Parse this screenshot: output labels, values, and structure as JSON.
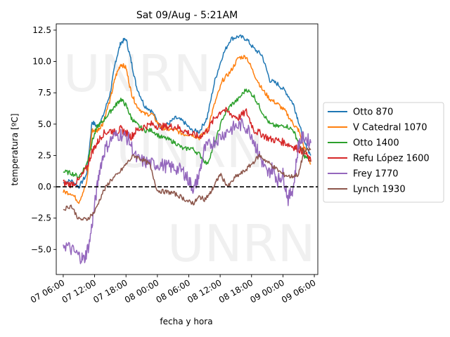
{
  "chart_data": {
    "type": "line",
    "title": "Sat 09/Aug - 5:21AM",
    "xlabel": "fecha y hora",
    "ylabel": "temperatura [ºC]",
    "xlim": [
      "07 04:40",
      "09 06:40"
    ],
    "ylim": [
      -7.0,
      13.0
    ],
    "xticks": [
      "07 06:00",
      "07 12:00",
      "07 18:00",
      "08 00:00",
      "08 06:00",
      "08 12:00",
      "08 18:00",
      "09 00:00",
      "09 06:00"
    ],
    "yticks": [
      -5.0,
      -2.5,
      0.0,
      2.5,
      5.0,
      7.5,
      10.0,
      12.5
    ],
    "ytick_labels": [
      "−5.0",
      "−2.5",
      "0.0",
      "2.5",
      "5.0",
      "7.5",
      "10.0",
      "12.5"
    ],
    "reference_line": {
      "y": 0,
      "style": "dashed",
      "color": "#000000"
    },
    "grid": false,
    "legend_position": "right, outside plot",
    "watermark": [
      "UNRN",
      "UNRN",
      "UNRN"
    ],
    "series": [
      {
        "name": "Otto 870",
        "color": "#1f77b4",
        "x": [
          "07 06:00",
          "07 07:30",
          "07 09:00",
          "07 10:30",
          "07 11:30",
          "07 12:30",
          "07 13:30",
          "07 15:00",
          "07 16:00",
          "07 17:00",
          "07 18:00",
          "07 19:00",
          "07 20:00",
          "07 21:30",
          "07 23:00",
          "08 00:30",
          "08 02:00",
          "08 03:30",
          "08 05:00",
          "08 06:30",
          "08 08:00",
          "08 09:30",
          "08 11:00",
          "08 12:30",
          "08 14:00",
          "08 15:30",
          "08 17:00",
          "08 18:30",
          "08 20:00",
          "08 21:30",
          "08 23:00",
          "09 00:30",
          "09 02:00",
          "09 03:00",
          "09 04:00",
          "09 05:21"
        ],
        "values": [
          0.3,
          0.5,
          0.0,
          1.0,
          5.2,
          4.8,
          5.5,
          7.5,
          10.0,
          11.5,
          11.8,
          10.0,
          8.0,
          6.5,
          6.0,
          4.8,
          5.0,
          5.5,
          5.2,
          4.5,
          4.4,
          5.5,
          8.5,
          10.5,
          11.8,
          12.0,
          11.8,
          11.0,
          10.5,
          8.5,
          8.2,
          7.6,
          6.6,
          5.2,
          3.6,
          2.5
        ]
      },
      {
        "name": "V Catedral 1070",
        "color": "#ff7f0e",
        "x": [
          "07 06:00",
          "07 07:30",
          "07 09:00",
          "07 10:30",
          "07 11:30",
          "07 12:30",
          "07 13:30",
          "07 15:00",
          "07 16:00",
          "07 17:00",
          "07 18:00",
          "07 19:00",
          "07 20:00",
          "07 21:30",
          "07 23:00",
          "08 00:30",
          "08 02:00",
          "08 03:30",
          "08 05:00",
          "08 06:30",
          "08 08:00",
          "08 09:30",
          "08 11:00",
          "08 12:30",
          "08 14:00",
          "08 15:30",
          "08 17:00",
          "08 18:30",
          "08 20:00",
          "08 21:30",
          "08 23:00",
          "09 00:30",
          "09 02:00",
          "09 03:00",
          "09 04:00",
          "09 05:21"
        ],
        "values": [
          -0.4,
          -0.5,
          -1.2,
          0.3,
          4.5,
          4.5,
          5.0,
          7.0,
          8.8,
          9.8,
          9.5,
          7.5,
          6.5,
          5.8,
          5.8,
          4.8,
          4.6,
          4.5,
          4.2,
          4.2,
          3.9,
          4.5,
          6.7,
          8.5,
          9.2,
          10.3,
          10.4,
          9.0,
          7.8,
          7.0,
          6.6,
          6.0,
          5.0,
          4.5,
          3.2,
          1.8
        ]
      },
      {
        "name": "Otto 1400",
        "color": "#2ca02c",
        "x": [
          "07 06:00",
          "07 07:30",
          "07 09:00",
          "07 10:30",
          "07 11:30",
          "07 12:30",
          "07 13:30",
          "07 15:00",
          "07 16:00",
          "07 17:00",
          "07 18:00",
          "07 19:00",
          "07 20:00",
          "07 21:30",
          "07 23:00",
          "08 00:30",
          "08 02:00",
          "08 03:30",
          "08 05:00",
          "08 06:30",
          "08 08:00",
          "08 09:30",
          "08 11:00",
          "08 12:30",
          "08 14:00",
          "08 15:30",
          "08 17:00",
          "08 18:30",
          "08 20:00",
          "08 21:30",
          "08 23:00",
          "09 00:30",
          "09 02:00",
          "09 03:00",
          "09 04:00",
          "09 05:21"
        ],
        "values": [
          1.2,
          1.1,
          0.8,
          1.8,
          3.6,
          4.8,
          5.2,
          6.0,
          6.5,
          7.0,
          6.5,
          5.5,
          5.0,
          4.5,
          4.5,
          4.0,
          3.8,
          3.5,
          3.0,
          3.1,
          2.6,
          1.8,
          3.5,
          5.5,
          6.5,
          7.0,
          7.8,
          7.2,
          6.0,
          5.0,
          4.8,
          4.9,
          4.5,
          3.5,
          2.5,
          2.0
        ]
      },
      {
        "name": "Refu López 1600",
        "color": "#d62728",
        "x": [
          "07 06:00",
          "07 07:30",
          "07 09:00",
          "07 10:30",
          "07 11:30",
          "07 12:30",
          "07 13:30",
          "07 15:00",
          "07 16:00",
          "07 17:00",
          "07 18:00",
          "07 19:00",
          "07 20:00",
          "07 21:30",
          "07 23:00",
          "08 00:30",
          "08 02:00",
          "08 03:30",
          "08 05:00",
          "08 06:30",
          "08 08:00",
          "08 09:30",
          "08 11:00",
          "08 12:30",
          "08 14:00",
          "08 15:30",
          "08 17:00",
          "08 18:30",
          "08 20:00",
          "08 21:30",
          "08 23:00",
          "09 00:30",
          "09 02:00",
          "09 03:00",
          "09 04:00",
          "09 05:21"
        ],
        "values": [
          0.3,
          0.2,
          0.5,
          1.5,
          2.8,
          3.5,
          4.2,
          4.5,
          4.3,
          4.6,
          4.3,
          4.0,
          4.5,
          4.8,
          5.0,
          4.8,
          4.8,
          4.8,
          4.5,
          4.2,
          4.0,
          4.5,
          5.5,
          6.2,
          5.8,
          5.5,
          6.0,
          4.5,
          4.2,
          3.8,
          3.7,
          3.5,
          3.2,
          3.0,
          2.8,
          2.0
        ]
      },
      {
        "name": "Frey 1770",
        "color": "#9467bd",
        "x": [
          "07 06:00",
          "07 07:30",
          "07 09:00",
          "07 10:00",
          "07 11:00",
          "07 12:00",
          "07 13:00",
          "07 14:00",
          "07 15:30",
          "07 17:00",
          "07 18:30",
          "07 20:00",
          "07 21:30",
          "07 23:00",
          "08 00:30",
          "08 02:00",
          "08 03:30",
          "08 05:00",
          "08 06:00",
          "08 07:00",
          "08 08:00",
          "08 09:00",
          "08 10:30",
          "08 12:00",
          "08 13:30",
          "08 15:00",
          "08 16:30",
          "08 18:00",
          "08 19:00",
          "08 20:00",
          "08 21:00",
          "08 22:00",
          "08 23:00",
          "09 00:00",
          "09 01:00",
          "09 02:00",
          "09 03:00",
          "09 04:00",
          "09 05:21"
        ],
        "values": [
          -4.5,
          -5.0,
          -5.5,
          -5.8,
          -4.5,
          -1.5,
          1.5,
          3.0,
          4.0,
          4.2,
          3.8,
          2.2,
          2.0,
          1.8,
          1.8,
          1.6,
          1.5,
          1.2,
          0.5,
          -0.2,
          1.0,
          3.0,
          3.5,
          4.0,
          4.5,
          4.8,
          5.0,
          4.2,
          3.0,
          2.0,
          1.0,
          1.5,
          0.5,
          1.0,
          -1.0,
          0.0,
          3.5,
          4.0,
          3.5
        ]
      },
      {
        "name": "Lynch 1930",
        "color": "#8c564b",
        "x": [
          "07 06:00",
          "07 07:30",
          "07 09:00",
          "07 10:30",
          "07 12:00",
          "07 13:30",
          "07 15:00",
          "07 16:30",
          "07 18:00",
          "07 19:30",
          "07 21:00",
          "07 22:30",
          "08 00:00",
          "08 01:30",
          "08 03:00",
          "08 04:30",
          "08 06:00",
          "08 07:00",
          "08 08:00",
          "08 09:00",
          "08 10:00",
          "08 11:00",
          "08 12:00",
          "08 13:30",
          "08 15:00",
          "08 16:30",
          "08 18:00",
          "08 19:30",
          "08 21:00",
          "08 22:30",
          "09 00:00",
          "09 01:30",
          "09 03:00",
          "09 04:00",
          "09 05:21"
        ],
        "values": [
          -1.8,
          -1.5,
          -2.6,
          -2.6,
          -2.0,
          -0.5,
          0.5,
          1.0,
          1.8,
          2.5,
          2.2,
          1.8,
          -0.3,
          -0.4,
          -0.5,
          -0.8,
          -1.2,
          -1.3,
          -0.8,
          -1.0,
          -0.6,
          0.2,
          1.0,
          0.0,
          0.8,
          1.2,
          1.8,
          2.5,
          2.0,
          1.5,
          1.0,
          0.8,
          1.0,
          2.8,
          3.0
        ]
      }
    ]
  }
}
